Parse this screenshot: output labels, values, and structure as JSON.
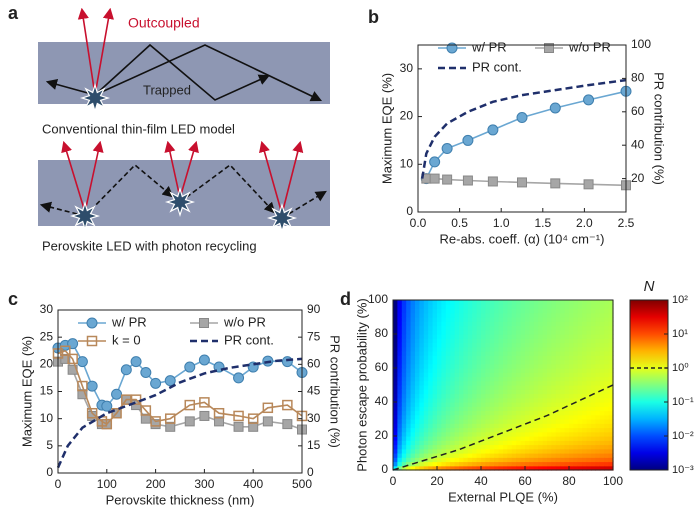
{
  "panel_labels": [
    "a",
    "b",
    "c",
    "d"
  ],
  "diagram": {
    "outcoupled": "Outcoupled",
    "trapped": "Trapped",
    "caption_top": "Conventional thin-film LED model",
    "caption_bottom": "Perovskite LED with photon recycling"
  },
  "chart_data": [
    {
      "type": "line",
      "xlabel": "Re-abs. coeff. (α) (10⁴ cm⁻¹)",
      "ylabel": "Maximum EQE (%)",
      "y2label": "PR contribution (%)",
      "xlim": [
        0,
        2.5
      ],
      "xticks": [
        {
          "value": 0,
          "label": "0.0"
        },
        0.5,
        {
          "value": 1,
          "label": "1.0"
        },
        1.5,
        {
          "value": 2,
          "label": "2.0"
        },
        2.5
      ],
      "ylim": [
        0,
        35
      ],
      "yticks": [
        0,
        10,
        20,
        30
      ],
      "y2lim": [
        0,
        100
      ],
      "y2ticks": [
        20,
        40,
        60,
        80,
        100
      ],
      "series": [
        {
          "name": "w/ PR",
          "color": "#6aa7d2",
          "marker": "circle",
          "x": [
            0.1,
            0.2,
            0.35,
            0.6,
            0.9,
            1.25,
            1.65,
            2.05,
            2.5
          ],
          "values": [
            7,
            10.5,
            13.3,
            15,
            17.2,
            19.8,
            21.8,
            23.5,
            25.3
          ]
        },
        {
          "name": "w/o PR",
          "color": "#a6a6a6",
          "marker": "square",
          "x": [
            0.1,
            0.2,
            0.35,
            0.6,
            0.9,
            1.25,
            1.65,
            2.05,
            2.5
          ],
          "values": [
            7,
            7,
            6.8,
            6.6,
            6.4,
            6.2,
            6,
            5.8,
            5.6
          ]
        },
        {
          "name": "PR cont.",
          "color": "#1f2f6b",
          "marker": "dash",
          "axis": "y2",
          "x": [
            0.05,
            0.1,
            0.2,
            0.35,
            0.6,
            0.9,
            1.25,
            1.65,
            2.05,
            2.5
          ],
          "values": [
            20,
            35,
            45,
            53,
            60,
            66,
            70,
            73,
            76,
            79
          ]
        }
      ]
    },
    {
      "type": "line",
      "xlabel": "Perovskite thickness (nm)",
      "ylabel": "Maximum EQE (%)",
      "y2label": "PR contribution (%)",
      "xlim": [
        0,
        500
      ],
      "xticks": [
        0,
        100,
        200,
        300,
        400,
        500
      ],
      "ylim": [
        0,
        30
      ],
      "yticks": [
        0,
        5,
        10,
        15,
        20,
        25,
        30
      ],
      "y2lim": [
        0,
        90
      ],
      "y2ticks": [
        0,
        15,
        30,
        45,
        60,
        75,
        90
      ],
      "series": [
        {
          "name": "w/ PR",
          "color": "#6aa7d2",
          "marker": "circle",
          "x": [
            0,
            15,
            30,
            50,
            70,
            90,
            100,
            120,
            140,
            160,
            180,
            200,
            230,
            270,
            300,
            330,
            370,
            400,
            430,
            470,
            500
          ],
          "values": [
            23,
            23.5,
            23.8,
            20.5,
            16,
            12.5,
            12.3,
            14.5,
            19,
            20.5,
            18.5,
            16.5,
            17,
            19.5,
            20.8,
            19.5,
            17.5,
            19.5,
            20.6,
            20.5,
            18.5
          ]
        },
        {
          "name": "w/o PR",
          "color": "#a6a6a6",
          "marker": "square",
          "x": [
            0,
            15,
            30,
            50,
            70,
            90,
            100,
            120,
            140,
            160,
            180,
            200,
            230,
            270,
            300,
            330,
            370,
            400,
            430,
            470,
            500
          ],
          "values": [
            20.5,
            21,
            19,
            14.5,
            10.5,
            9,
            9,
            11,
            13.5,
            12.5,
            10,
            9,
            8.5,
            9.5,
            10.5,
            9.5,
            8.5,
            8.5,
            9.5,
            9,
            8
          ]
        },
        {
          "name": "k = 0",
          "color": "#b8885a",
          "marker": "open-square",
          "x": [
            0,
            15,
            30,
            50,
            70,
            90,
            100,
            120,
            140,
            160,
            180,
            200,
            230,
            270,
            300,
            330,
            370,
            400,
            430,
            470,
            500
          ],
          "values": [
            22,
            22.5,
            21,
            16,
            11,
            9.5,
            9,
            11,
            13.5,
            13.5,
            11.5,
            9.5,
            10,
            12.5,
            13,
            11,
            10.5,
            10,
            12,
            12.5,
            10.5
          ]
        },
        {
          "name": "PR cont.",
          "color": "#1f2f6b",
          "marker": "dash",
          "axis": "y2",
          "x": [
            0,
            20,
            50,
            100,
            150,
            200,
            250,
            300,
            350,
            400,
            450,
            500
          ],
          "values": [
            3,
            15,
            25,
            33,
            38,
            43,
            50,
            55,
            58,
            60,
            62,
            63
          ]
        }
      ]
    },
    {
      "type": "heatmap",
      "xlabel": "External PLQE (%)",
      "ylabel": "Photon escape probability (%)",
      "xlim": [
        0,
        100
      ],
      "xticks": [
        0,
        20,
        40,
        60,
        80,
        100
      ],
      "ylim": [
        0,
        100
      ],
      "yticks": [
        0,
        20,
        40,
        60,
        80,
        100
      ],
      "colorbar": {
        "title": "N",
        "log": true,
        "lim": [
          0.001,
          100
        ],
        "ticks": [
          {
            "value": 100,
            "label": "10²"
          },
          {
            "value": 10,
            "label": "10¹"
          },
          {
            "value": 1,
            "label": "10⁰"
          },
          {
            "value": 0.1,
            "label": "10⁻¹"
          },
          {
            "value": 0.01,
            "label": "10⁻²"
          },
          {
            "value": 0.001,
            "label": "10⁻³"
          }
        ]
      },
      "contour": {
        "level": 1,
        "x": [
          0,
          10,
          20,
          30,
          40,
          50,
          60,
          70,
          80,
          90,
          100
        ],
        "y": [
          0,
          4,
          8,
          12,
          17,
          22,
          27,
          32,
          38,
          44,
          50
        ]
      }
    }
  ]
}
